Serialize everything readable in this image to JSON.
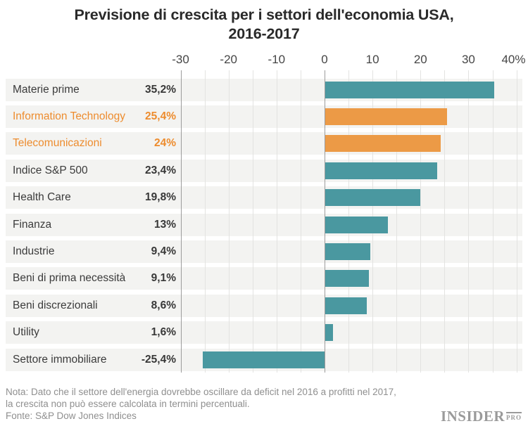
{
  "chart_data": {
    "type": "bar",
    "orientation": "horizontal",
    "title": "Previsione di crescita per i settori dell'economia USA, 2016-2017",
    "title_lines": [
      "Previsione di crescita per i settori dell'economia USA,",
      "2016-2017"
    ],
    "xlim": [
      -30,
      40
    ],
    "grid_minor_step": 5,
    "grid": true,
    "legend": false,
    "ticks": [
      {
        "value": -30,
        "label": "-30"
      },
      {
        "value": -20,
        "label": "-20"
      },
      {
        "value": -10,
        "label": "-10"
      },
      {
        "value": 0,
        "label": "0"
      },
      {
        "value": 10,
        "label": "10"
      },
      {
        "value": 20,
        "label": "20"
      },
      {
        "value": 30,
        "label": "30"
      },
      {
        "value": 40,
        "label": "40%"
      }
    ],
    "rows": [
      {
        "label": "Materie prime",
        "value": 35.2,
        "display": "35,2%",
        "highlight": false
      },
      {
        "label": "Information Technology",
        "value": 25.4,
        "display": "25,4%",
        "highlight": true
      },
      {
        "label": "Telecomunicazioni",
        "value": 24,
        "display": "24%",
        "highlight": true
      },
      {
        "label": "Indice S&P 500",
        "value": 23.4,
        "display": "23,4%",
        "highlight": false
      },
      {
        "label": "Health Care",
        "value": 19.8,
        "display": "19,8%",
        "highlight": false
      },
      {
        "label": "Finanza",
        "value": 13,
        "display": "13%",
        "highlight": false
      },
      {
        "label": "Industrie",
        "value": 9.4,
        "display": "9,4%",
        "highlight": false
      },
      {
        "label": "Beni di prima necessità",
        "value": 9.1,
        "display": "9,1%",
        "highlight": false
      },
      {
        "label": "Beni discrezionali",
        "value": 8.6,
        "display": "8,6%",
        "highlight": false
      },
      {
        "label": "Utility",
        "value": 1.6,
        "display": "1,6%",
        "highlight": false
      },
      {
        "label": "Settore immobiliare",
        "value": -25.4,
        "display": "-25,4%",
        "highlight": false
      }
    ],
    "colors": {
      "bar_default": "#4A98A0",
      "bar_highlight": "#EC9A46",
      "text_highlight": "#ED8C2E",
      "text_default": "#3B3B3B"
    }
  },
  "footer": {
    "note_line1": "Nota: Dato che il settore dell'energia dovrebbe oscillare da deficit nel 2016 a profitti nel 2017,",
    "note_line2": "la crescita non può essere calcolata in termini percentuali.",
    "source": "Fonte: S&P Dow Jones Indices"
  },
  "logo": {
    "main": "INSIDER",
    "sub": "PRO"
  }
}
